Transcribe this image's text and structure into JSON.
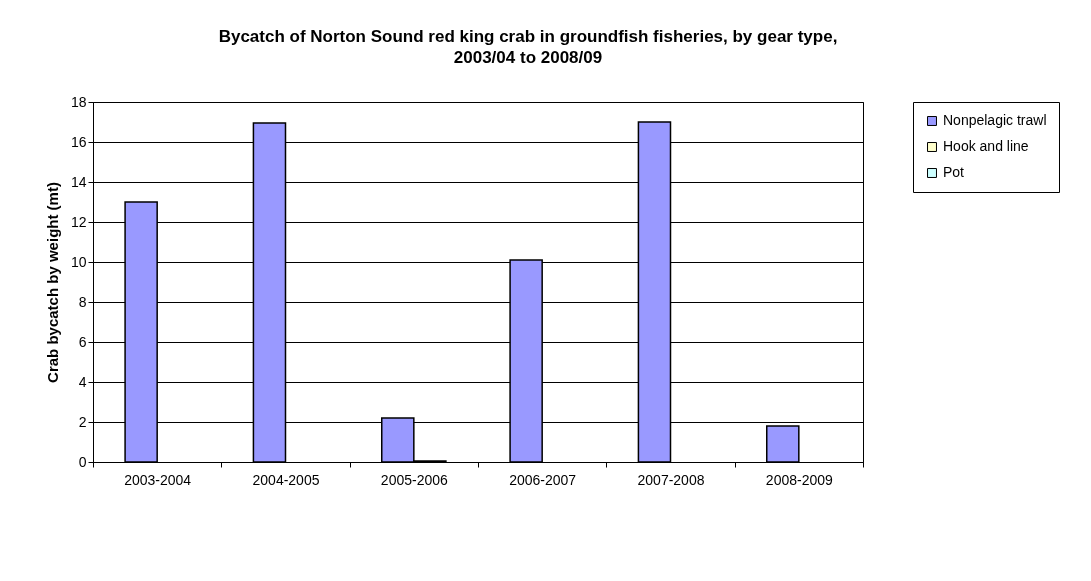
{
  "chart_data": {
    "type": "bar",
    "title": "Bycatch of Norton Sound red king crab in groundfish fisheries, by gear type, 2003/04 to 2008/09",
    "ylabel": "Crab bycatch by weight (mt)",
    "categories": [
      "2003-2004",
      "2004-2005",
      "2005-2006",
      "2006-2007",
      "2007-2008",
      "2008-2009"
    ],
    "series": [
      {
        "name": "Nonpelagic trawl",
        "color": "#9999ff",
        "values": [
          13.0,
          16.95,
          2.2,
          10.1,
          17.0,
          1.8
        ]
      },
      {
        "name": "Hook and line",
        "color": "#ffffcc",
        "values": [
          null,
          null,
          0.05,
          null,
          null,
          null
        ]
      },
      {
        "name": "Pot",
        "color": "#ccffff",
        "values": [
          null,
          null,
          null,
          null,
          null,
          null
        ]
      }
    ],
    "ylim": [
      0,
      18
    ],
    "yticks": [
      0,
      2,
      4,
      6,
      8,
      10,
      12,
      14,
      16,
      18
    ],
    "grid": "y",
    "legend": "right"
  }
}
